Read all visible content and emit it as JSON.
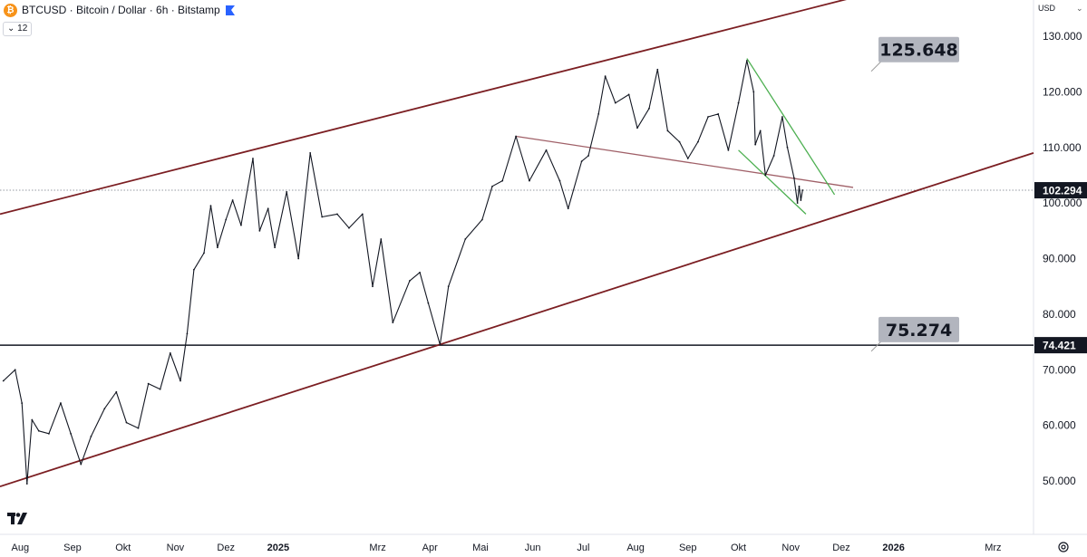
{
  "header": {
    "symbol_title": "BTCUSD · Bitcoin / Dollar · 6h · Bitstamp",
    "btc_glyph": "₿",
    "interval_indicator": "⌄ 12"
  },
  "axis": {
    "currency": "USD",
    "currency_chevron": "⌄",
    "y_ticks": [
      {
        "value": 130000,
        "label": "130.000"
      },
      {
        "value": 120000,
        "label": "120.000"
      },
      {
        "value": 110000,
        "label": "110.000"
      },
      {
        "value": 100000,
        "label": "100.000"
      },
      {
        "value": 90000,
        "label": "90.000"
      },
      {
        "value": 80000,
        "label": "80.000"
      },
      {
        "value": 70000,
        "label": "70.000"
      },
      {
        "value": 60000,
        "label": "60.000"
      },
      {
        "value": 50000,
        "label": "50.000"
      }
    ],
    "x_ticks": [
      {
        "date": "2024-08-01",
        "label": "Aug",
        "bold": false
      },
      {
        "date": "2024-09-01",
        "label": "Sep",
        "bold": false
      },
      {
        "date": "2024-10-01",
        "label": "Okt",
        "bold": false
      },
      {
        "date": "2024-11-01",
        "label": "Nov",
        "bold": false
      },
      {
        "date": "2024-12-01",
        "label": "Dez",
        "bold": false
      },
      {
        "date": "2025-01-01",
        "label": "2025",
        "bold": true
      },
      {
        "date": "2025-03-01",
        "label": "Mrz",
        "bold": false
      },
      {
        "date": "2025-04-01",
        "label": "Apr",
        "bold": false
      },
      {
        "date": "2025-05-01",
        "label": "Mai",
        "bold": false
      },
      {
        "date": "2025-06-01",
        "label": "Jun",
        "bold": false
      },
      {
        "date": "2025-07-01",
        "label": "Jul",
        "bold": false
      },
      {
        "date": "2025-08-01",
        "label": "Aug",
        "bold": false
      },
      {
        "date": "2025-09-01",
        "label": "Sep",
        "bold": false
      },
      {
        "date": "2025-10-01",
        "label": "Okt",
        "bold": false
      },
      {
        "date": "2025-11-01",
        "label": "Nov",
        "bold": false
      },
      {
        "date": "2025-12-01",
        "label": "Dez",
        "bold": false
      },
      {
        "date": "2026-01-01",
        "label": "2026",
        "bold": true
      },
      {
        "date": "2026-03-01",
        "label": "Mrz",
        "bold": false
      }
    ]
  },
  "chart_data": {
    "type": "line",
    "title": "BTCUSD · Bitcoin / Dollar · 6h · Bitstamp",
    "xlabel": "",
    "ylabel": "",
    "x_range": [
      "2024-07-20",
      "2026-03-25"
    ],
    "ylim": [
      46000,
      133500
    ],
    "grid": false,
    "series": [
      {
        "name": "BTCUSD",
        "color": "#131722",
        "points": [
          [
            "2024-07-22",
            68000
          ],
          [
            "2024-07-29",
            70000
          ],
          [
            "2024-08-02",
            64000
          ],
          [
            "2024-08-05",
            49500
          ],
          [
            "2024-08-08",
            61000
          ],
          [
            "2024-08-12",
            59000
          ],
          [
            "2024-08-18",
            58500
          ],
          [
            "2024-08-25",
            64000
          ],
          [
            "2024-08-31",
            58500
          ],
          [
            "2024-09-06",
            53000
          ],
          [
            "2024-09-12",
            58000
          ],
          [
            "2024-09-20",
            63000
          ],
          [
            "2024-09-27",
            66000
          ],
          [
            "2024-10-03",
            60500
          ],
          [
            "2024-10-10",
            59500
          ],
          [
            "2024-10-16",
            67500
          ],
          [
            "2024-10-23",
            66500
          ],
          [
            "2024-10-29",
            73000
          ],
          [
            "2024-11-04",
            68000
          ],
          [
            "2024-11-08",
            76500
          ],
          [
            "2024-11-12",
            88000
          ],
          [
            "2024-11-18",
            91000
          ],
          [
            "2024-11-22",
            99500
          ],
          [
            "2024-11-26",
            92000
          ],
          [
            "2024-12-01",
            97000
          ],
          [
            "2024-12-05",
            100500
          ],
          [
            "2024-12-10",
            96000
          ],
          [
            "2024-12-17",
            108000
          ],
          [
            "2024-12-21",
            95000
          ],
          [
            "2024-12-26",
            99000
          ],
          [
            "2024-12-30",
            92000
          ],
          [
            "2025-01-06",
            102000
          ],
          [
            "2025-01-13",
            90000
          ],
          [
            "2025-01-20",
            109000
          ],
          [
            "2025-01-27",
            97500
          ],
          [
            "2025-02-05",
            98000
          ],
          [
            "2025-02-12",
            95500
          ],
          [
            "2025-02-20",
            98000
          ],
          [
            "2025-02-26",
            85000
          ],
          [
            "2025-03-03",
            93500
          ],
          [
            "2025-03-10",
            78500
          ],
          [
            "2025-03-20",
            86000
          ],
          [
            "2025-03-26",
            87500
          ],
          [
            "2025-03-31",
            82000
          ],
          [
            "2025-04-07",
            74500
          ],
          [
            "2025-04-12",
            85000
          ],
          [
            "2025-04-22",
            93500
          ],
          [
            "2025-05-02",
            97000
          ],
          [
            "2025-05-08",
            103000
          ],
          [
            "2025-05-14",
            104000
          ],
          [
            "2025-05-22",
            112000
          ],
          [
            "2025-05-30",
            104000
          ],
          [
            "2025-06-09",
            109500
          ],
          [
            "2025-06-17",
            104000
          ],
          [
            "2025-06-22",
            99000
          ],
          [
            "2025-06-30",
            107500
          ],
          [
            "2025-07-04",
            108500
          ],
          [
            "2025-07-10",
            116000
          ],
          [
            "2025-07-14",
            122800
          ],
          [
            "2025-07-20",
            118000
          ],
          [
            "2025-07-28",
            119500
          ],
          [
            "2025-08-02",
            113500
          ],
          [
            "2025-08-09",
            117000
          ],
          [
            "2025-08-14",
            124000
          ],
          [
            "2025-08-20",
            113000
          ],
          [
            "2025-08-27",
            111000
          ],
          [
            "2025-09-01",
            108000
          ],
          [
            "2025-09-07",
            111000
          ],
          [
            "2025-09-13",
            115500
          ],
          [
            "2025-09-19",
            116000
          ],
          [
            "2025-09-25",
            109500
          ],
          [
            "2025-10-01",
            118000
          ],
          [
            "2025-10-06",
            125600
          ],
          [
            "2025-10-10",
            120000
          ],
          [
            "2025-10-11",
            110500
          ],
          [
            "2025-10-14",
            113000
          ],
          [
            "2025-10-17",
            105000
          ],
          [
            "2025-10-22",
            108500
          ],
          [
            "2025-10-27",
            115500
          ],
          [
            "2025-10-30",
            110000
          ],
          [
            "2025-11-03",
            104500
          ],
          [
            "2025-11-05",
            100000
          ],
          [
            "2025-11-06",
            103000
          ],
          [
            "2025-11-07",
            100500
          ],
          [
            "2025-11-08",
            102294
          ]
        ]
      }
    ],
    "trendlines": [
      {
        "name": "upper-channel-line",
        "color": "#7b1e22",
        "points": [
          [
            "2024-07-20",
            98000
          ],
          [
            "2025-12-28",
            138500
          ]
        ]
      },
      {
        "name": "lower-channel-line",
        "color": "#7b1e22",
        "points": [
          [
            "2024-07-20",
            49000
          ],
          [
            "2026-03-25",
            109000
          ]
        ]
      },
      {
        "name": "descending-resistance-line",
        "color": "#a06068",
        "points": [
          [
            "2025-05-22",
            112000
          ],
          [
            "2025-12-08",
            102800
          ]
        ]
      },
      {
        "name": "wedge-upper-line",
        "color": "#4caf50",
        "points": [
          [
            "2025-10-06",
            126000
          ],
          [
            "2025-11-27",
            101500
          ]
        ]
      },
      {
        "name": "wedge-lower-line",
        "color": "#4caf50",
        "points": [
          [
            "2025-10-01",
            109500
          ],
          [
            "2025-11-10",
            98000
          ]
        ]
      }
    ],
    "horizontal_lines": [
      {
        "name": "support-line",
        "value": 74421,
        "color": "#131722",
        "style": "solid"
      },
      {
        "name": "last-price-line",
        "value": 102294,
        "color": "#9598a1",
        "style": "dotted"
      }
    ],
    "price_labels": [
      {
        "name": "last-price-tag",
        "value": 102294,
        "text": "102.294",
        "background": "#131722"
      },
      {
        "name": "support-price-tag",
        "value": 74421,
        "text": "74.421",
        "background": "#131722"
      }
    ],
    "callouts": [
      {
        "name": "ath-callout",
        "text": "125.648",
        "value": 125648,
        "anchor_date": "2025-12-08"
      },
      {
        "name": "low-callout",
        "text": "75.274",
        "value": 75274,
        "anchor_date": "2025-12-08"
      }
    ]
  }
}
